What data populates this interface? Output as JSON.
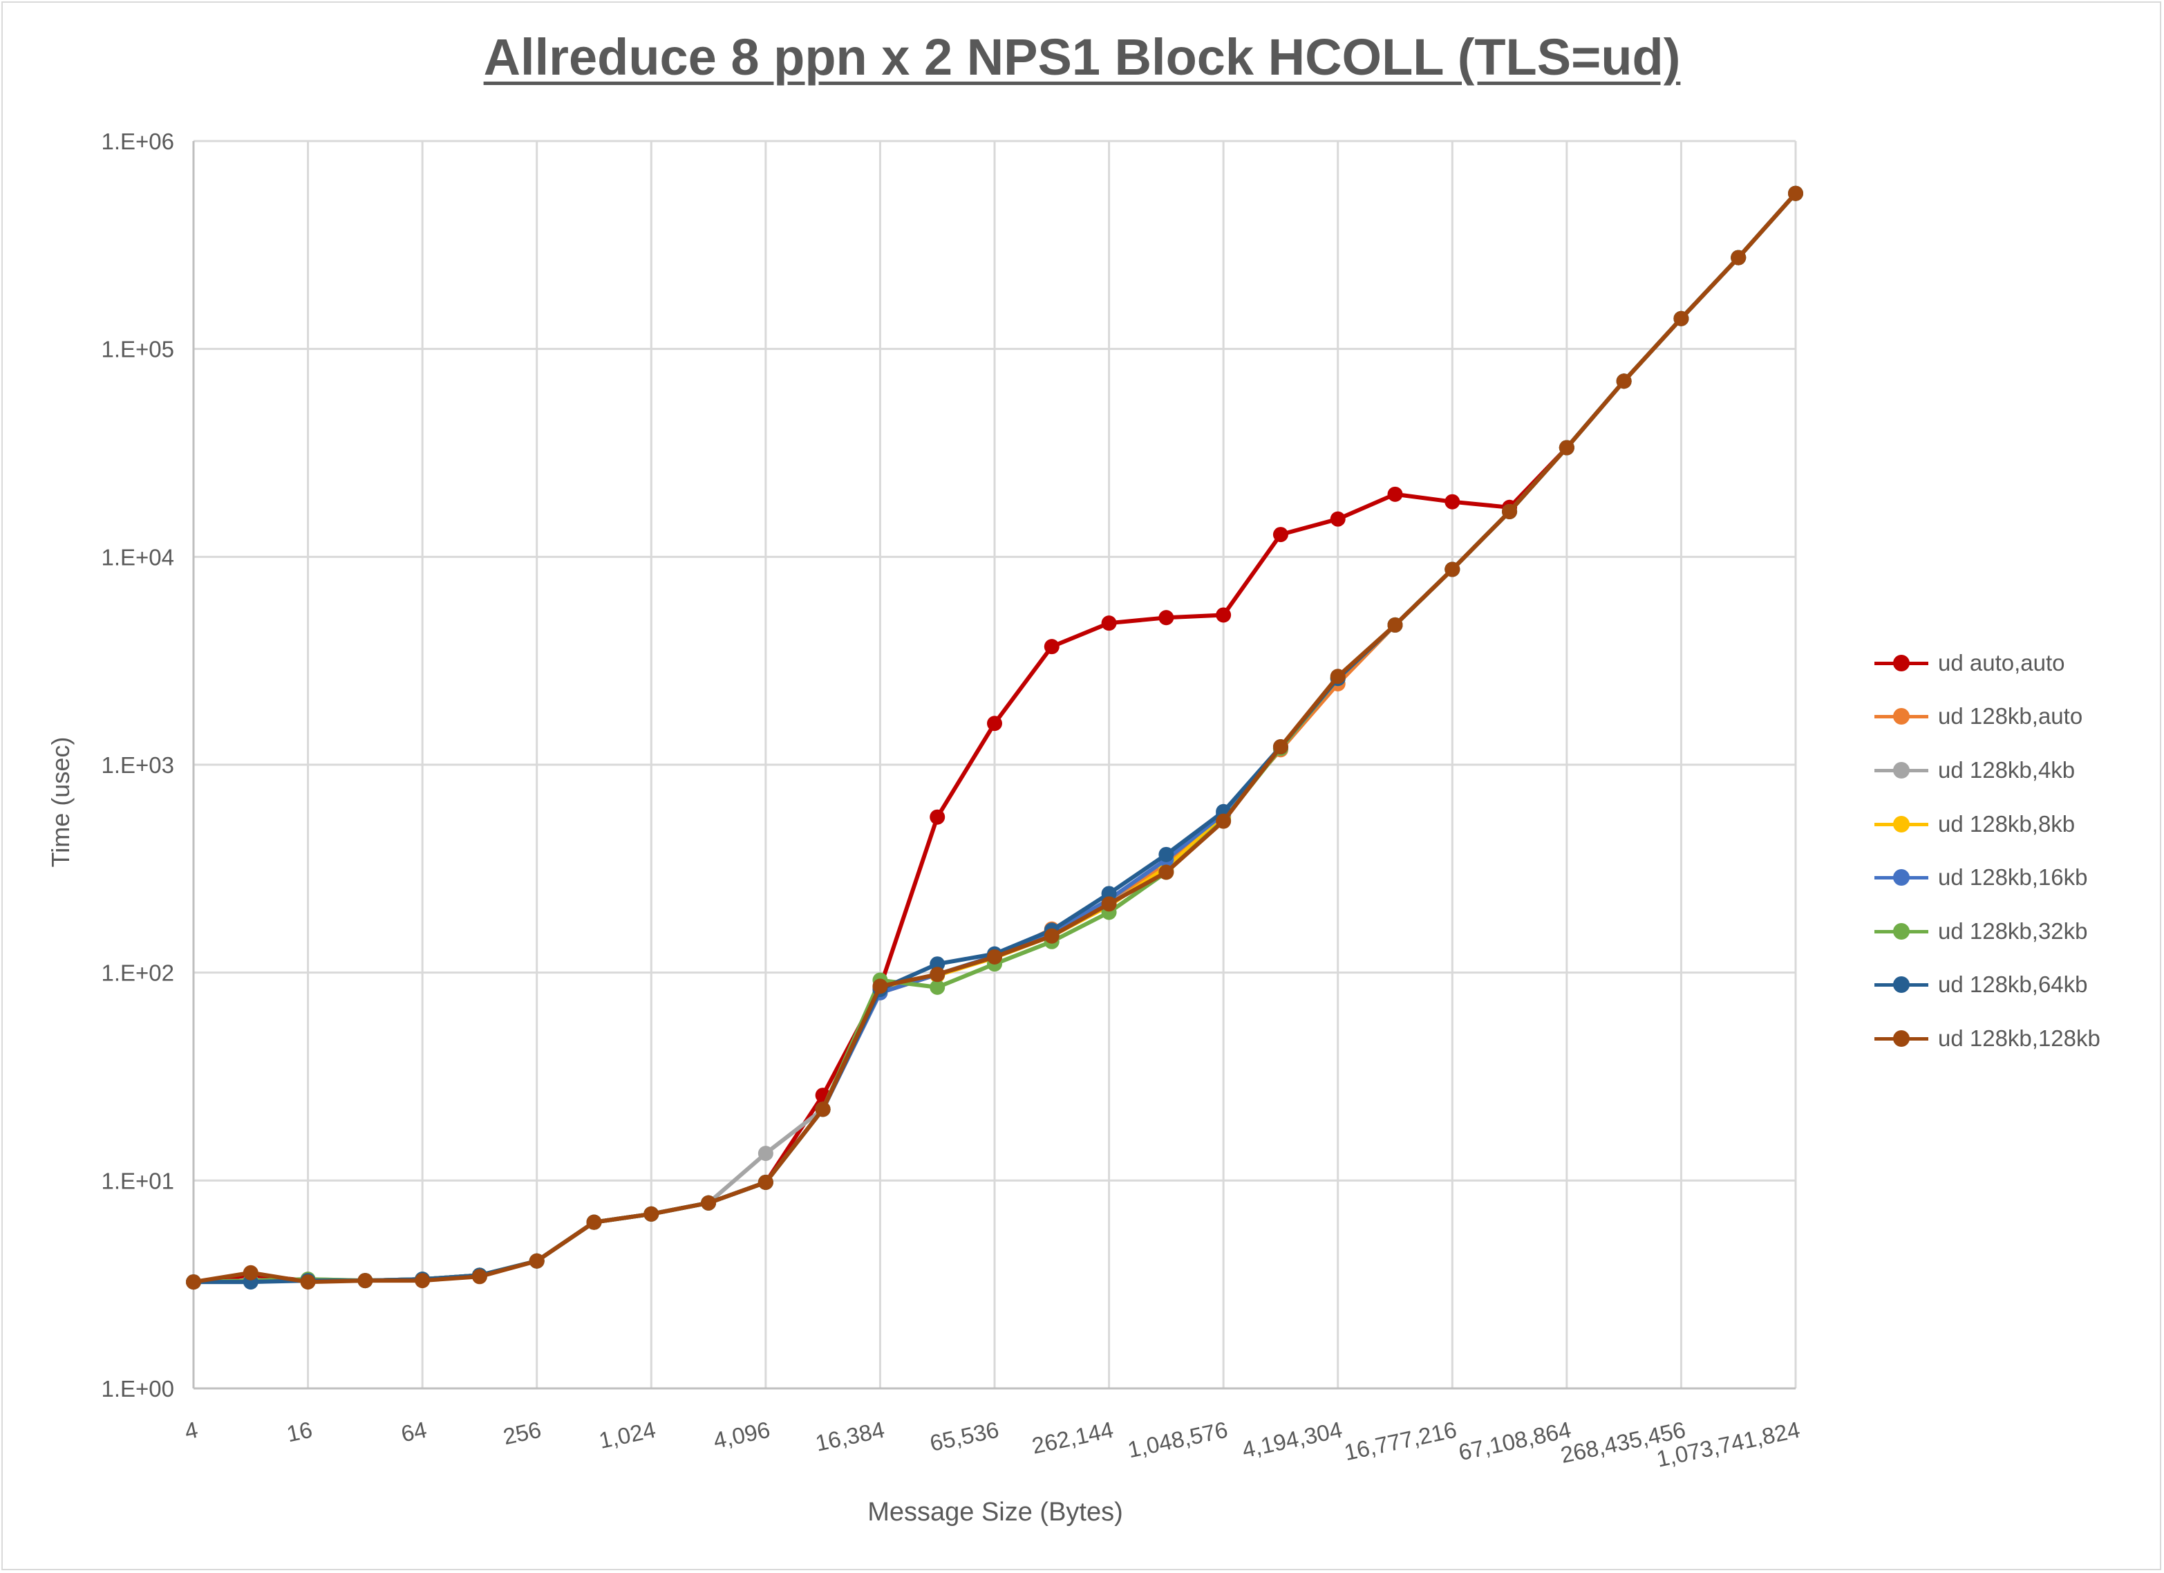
{
  "chart_data": {
    "type": "line",
    "title": "Allreduce 8 ppn x 2 NPS1 Block HCOLL (TLS=ud)",
    "xlabel": "Message Size (Bytes)",
    "ylabel": "Time (usec)",
    "x_scale": "log2",
    "y_scale": "log10",
    "ylim": [
      1,
      1000000
    ],
    "grid": true,
    "legend_position": "right",
    "y_tick_labels": [
      "1.E+00",
      "1.E+01",
      "1.E+02",
      "1.E+03",
      "1.E+04",
      "1.E+05",
      "1.E+06"
    ],
    "x_tick_labels": [
      "4",
      "16",
      "64",
      "256",
      "1,024",
      "4,096",
      "16,384",
      "65,536",
      "262,144",
      "1,048,576",
      "4,194,304",
      "16,777,216",
      "67,108,864",
      "268,435,456",
      "1,073,741,824"
    ],
    "x": [
      4,
      8,
      16,
      32,
      64,
      128,
      256,
      512,
      1024,
      2048,
      4096,
      8192,
      16384,
      32768,
      65536,
      131072,
      262144,
      524288,
      1048576,
      2097152,
      4194304,
      8388608,
      16777216,
      33554432,
      67108864,
      134217728,
      268435456,
      536870912,
      1073741824
    ],
    "series": [
      {
        "name": "ud auto,auto",
        "color": "#c00000",
        "values": [
          3.25,
          3.5,
          3.3,
          3.3,
          3.35,
          3.5,
          4.1,
          6.3,
          6.9,
          7.8,
          9.8,
          25.7,
          85,
          560,
          1580,
          3700,
          4800,
          5100,
          5250,
          12800,
          15200,
          20000,
          18400,
          17300,
          33500,
          70000,
          140000,
          275000,
          560000
        ]
      },
      {
        "name": "ud 128kb,auto",
        "color": "#ed7d31",
        "values": [
          3.25,
          3.3,
          3.3,
          3.3,
          3.35,
          3.5,
          4.1,
          6.3,
          6.9,
          7.8,
          9.8,
          22,
          80,
          98,
          118,
          162,
          220,
          330,
          570,
          1180,
          2450,
          4700,
          8700,
          16500,
          33500,
          70000,
          140000,
          275000,
          560000
        ]
      },
      {
        "name": "ud 128kb,4kb",
        "color": "#a5a5a5",
        "values": [
          3.25,
          3.3,
          3.35,
          3.3,
          3.35,
          3.5,
          4.1,
          6.3,
          6.9,
          7.8,
          13.5,
          22,
          85,
          98,
          120,
          155,
          215,
          310,
          560,
          1200,
          2600,
          4700,
          8700,
          16500,
          33500,
          70000,
          140000,
          275000,
          560000
        ]
      },
      {
        "name": "ud 128kb,8kb",
        "color": "#ffc000",
        "values": [
          3.25,
          3.3,
          3.3,
          3.3,
          3.35,
          3.5,
          4.1,
          6.3,
          6.9,
          7.8,
          9.8,
          22,
          85,
          97,
          118,
          150,
          210,
          320,
          560,
          1200,
          2600,
          4700,
          8700,
          16500,
          33500,
          70000,
          140000,
          275000,
          560000
        ]
      },
      {
        "name": "ud 128kb,16kb",
        "color": "#4472c4",
        "values": [
          3.25,
          3.3,
          3.3,
          3.3,
          3.35,
          3.5,
          4.1,
          6.3,
          6.9,
          7.8,
          9.8,
          22,
          80,
          98,
          120,
          155,
          225,
          350,
          580,
          1200,
          2600,
          4700,
          8700,
          16500,
          33500,
          70000,
          140000,
          275000,
          560000
        ]
      },
      {
        "name": "ud 128kb,32kb",
        "color": "#70ad47",
        "values": [
          3.25,
          3.3,
          3.35,
          3.3,
          3.35,
          3.5,
          4.1,
          6.3,
          6.9,
          7.8,
          9.8,
          22,
          92,
          85,
          110,
          141,
          195,
          304,
          540,
          1200,
          2600,
          4700,
          8700,
          16500,
          33500,
          70000,
          140000,
          275000,
          560000
        ]
      },
      {
        "name": "ud 128kb,64kb",
        "color": "#255e91",
        "values": [
          3.25,
          3.25,
          3.3,
          3.3,
          3.35,
          3.5,
          4.1,
          6.3,
          6.9,
          7.8,
          9.8,
          22,
          83,
          110,
          123,
          160,
          240,
          370,
          595,
          1220,
          2600,
          4700,
          8700,
          16500,
          33500,
          70000,
          140000,
          275000,
          560000
        ]
      },
      {
        "name": "ud 128kb,128kb",
        "color": "#9e480e",
        "values": [
          3.25,
          3.6,
          3.25,
          3.3,
          3.3,
          3.45,
          4.1,
          6.3,
          6.9,
          7.8,
          9.8,
          22,
          86,
          98,
          119,
          150,
          214,
          304,
          535,
          1220,
          2660,
          4700,
          8700,
          16500,
          33500,
          70000,
          140000,
          275000,
          560000
        ]
      }
    ]
  }
}
